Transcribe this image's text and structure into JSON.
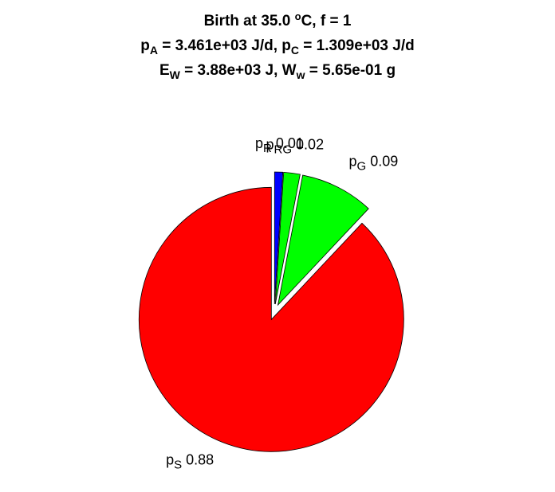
{
  "chart_data": {
    "type": "pie",
    "title": [
      [
        {
          "text": "Birth at 35.0 "
        },
        {
          "text": "o",
          "shift": "sup"
        },
        {
          "text": "C, f = 1"
        }
      ],
      [
        {
          "text": "p"
        },
        {
          "text": "A",
          "shift": "sub"
        },
        {
          "text": " = 3.461e+03 J/d, p"
        },
        {
          "text": "C",
          "shift": "sub"
        },
        {
          "text": " = 1.309e+03 J/d"
        }
      ],
      [
        {
          "text": "E"
        },
        {
          "text": "W",
          "shift": "sub"
        },
        {
          "text": " = 3.88e+03 J, W"
        },
        {
          "text": "w",
          "shift": "sub"
        },
        {
          "text": " = 5.65e-01 g"
        }
      ]
    ],
    "slices": [
      {
        "symbol": "p",
        "sub": "R",
        "value": 0.01,
        "color": "#0000ff"
      },
      {
        "symbol": "p",
        "sub": "RG",
        "value": 0.02,
        "color": "#00ff00"
      },
      {
        "symbol": "p",
        "sub": "G",
        "value": 0.09,
        "color": "#00ff00"
      },
      {
        "symbol": "p",
        "sub": "S",
        "value": 0.88,
        "color": "#ff0000"
      }
    ],
    "exploded": true
  }
}
